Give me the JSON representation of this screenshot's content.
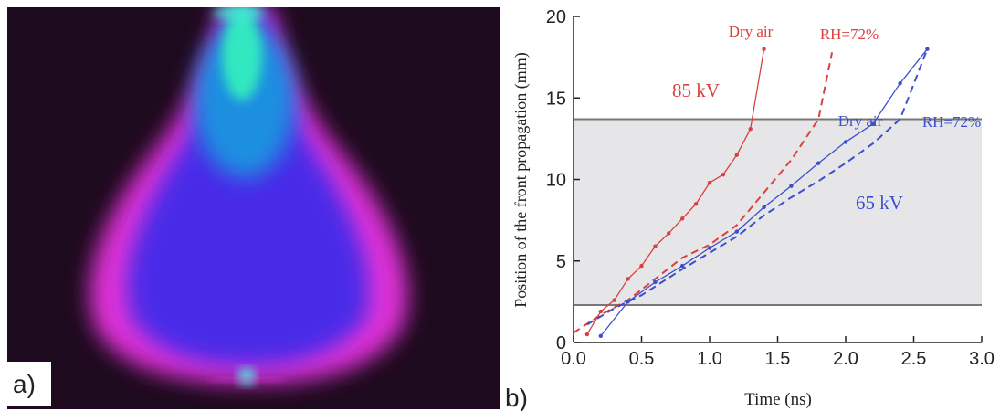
{
  "panels": {
    "a": "a)",
    "b": "b)"
  },
  "chart_data": {
    "type": "line",
    "xlabel": "Time (ns)",
    "ylabel": "Position of the front propagation (mm)",
    "xlim": [
      0,
      3
    ],
    "ylim": [
      0,
      20
    ],
    "xticks": [
      {
        "value": 0,
        "label": "0.0"
      },
      {
        "value": 0.5,
        "label": "0.5"
      },
      {
        "value": 1,
        "label": "1.0"
      },
      {
        "value": 1.5,
        "label": "1.5"
      },
      {
        "value": 2,
        "label": "2.0"
      },
      {
        "value": 2.5,
        "label": "2.5"
      },
      {
        "value": 3,
        "label": "3.0"
      }
    ],
    "yticks": [
      0,
      5,
      10,
      15,
      20
    ],
    "band": [
      2.3,
      13.7
    ],
    "band_color": "#e6e6e8",
    "annotations": [
      "85 kV",
      "65 kV"
    ],
    "series": [
      {
        "name": "Dry air",
        "color": "#d9413f",
        "dashed": false,
        "markers": true,
        "x": [
          0.1,
          0.2,
          0.3,
          0.4,
          0.5,
          0.6,
          0.7,
          0.8,
          0.9,
          1.0,
          1.1,
          1.2,
          1.3,
          1.4
        ],
        "values": [
          0.5,
          1.9,
          2.6,
          3.9,
          4.7,
          5.9,
          6.7,
          7.6,
          8.5,
          9.8,
          10.3,
          11.5,
          13.1,
          18.0
        ]
      },
      {
        "name": "RH=72%",
        "color": "#d9413f",
        "dashed": true,
        "markers": false,
        "x": [
          0.0,
          0.2,
          0.4,
          0.6,
          0.8,
          1.0,
          1.2,
          1.4,
          1.6,
          1.8,
          1.9
        ],
        "values": [
          0.6,
          1.7,
          2.6,
          3.9,
          5.2,
          6.0,
          7.2,
          9.2,
          11.2,
          13.7,
          17.8
        ]
      },
      {
        "name": "Dry air",
        "color": "#3b4fcf",
        "dashed": false,
        "markers": true,
        "x": [
          0.2,
          0.4,
          0.6,
          0.8,
          1.0,
          1.2,
          1.4,
          1.6,
          1.8,
          2.0,
          2.2,
          2.4,
          2.6
        ],
        "values": [
          0.4,
          2.5,
          3.7,
          4.7,
          5.8,
          6.8,
          8.3,
          9.6,
          11.0,
          12.3,
          13.4,
          15.9,
          18.0
        ]
      },
      {
        "name": "RH=72%",
        "color": "#3b4fcf",
        "dashed": true,
        "markers": false,
        "x": [
          0.1,
          0.3,
          0.5,
          0.8,
          1.0,
          1.2,
          1.4,
          1.6,
          1.8,
          2.0,
          2.2,
          2.4,
          2.6
        ],
        "values": [
          1.1,
          2.1,
          2.9,
          4.5,
          5.5,
          6.5,
          7.8,
          8.9,
          9.9,
          11.0,
          12.2,
          13.7,
          18.0
        ]
      }
    ]
  }
}
